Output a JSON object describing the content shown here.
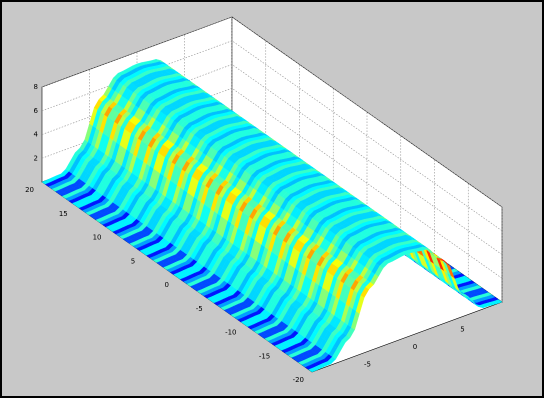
{
  "colors": {
    "figure_background": "#c8c8c8",
    "axes_background": "#ffffff",
    "grid": "#909090",
    "colormap": "jet"
  },
  "chart_data": {
    "type": "surface",
    "colormap": "jet",
    "grid": true,
    "x_ticks": [
      "-5",
      "0",
      "5"
    ],
    "y_ticks": [
      "20",
      "15",
      "10",
      "5",
      "0",
      "-5",
      "-10",
      "-15",
      "-20"
    ],
    "z_ticks": [
      "2",
      "4",
      "6",
      "8"
    ],
    "xlim": [
      -10,
      10
    ],
    "ylim": [
      -20,
      20
    ],
    "zlim": [
      0,
      8
    ],
    "surface": {
      "height_profile_along_x": {
        "x": [
          -10,
          -8,
          -6,
          -4,
          -2,
          0,
          2,
          4,
          6,
          8,
          10
        ],
        "z": [
          0,
          0.1,
          1.7,
          5.2,
          6.8,
          7.0,
          6.8,
          5.2,
          1.7,
          0.1,
          0
        ]
      },
      "stripes_along_y": true,
      "high_color_band_at_ridge_foot": true
    }
  }
}
